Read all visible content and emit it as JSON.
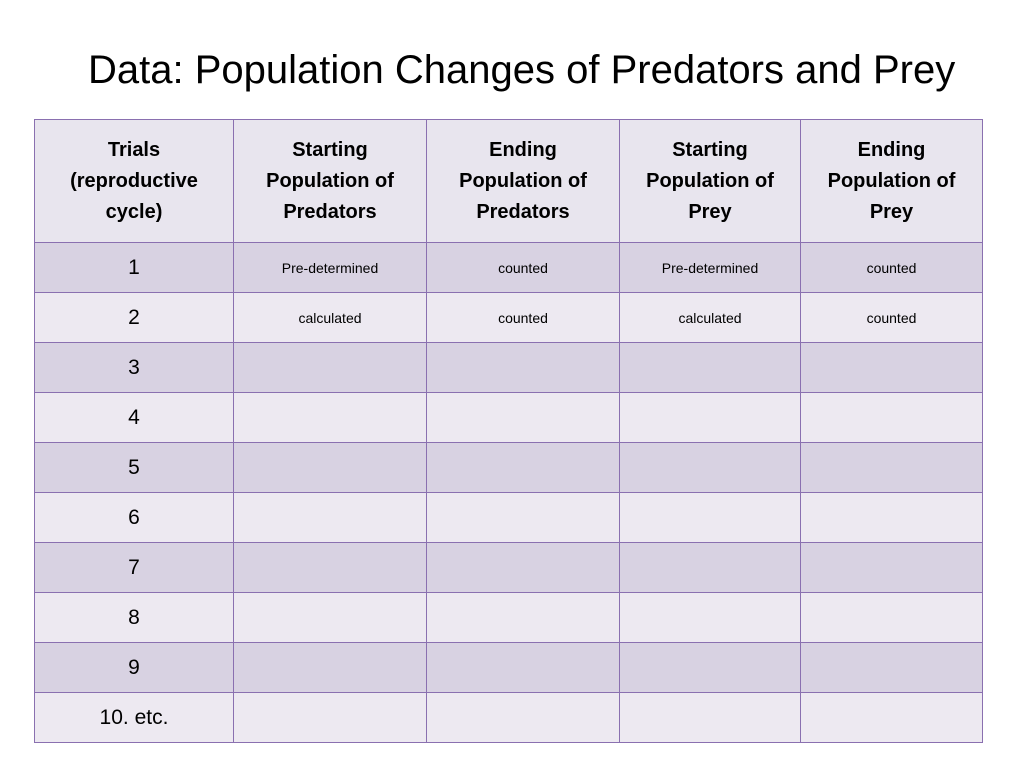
{
  "title": "Data: Population Changes of Predators and Prey",
  "table": {
    "headers": [
      [
        "Trials",
        "(reproductive",
        "cycle)"
      ],
      [
        "Starting",
        "Population of",
        "Predators"
      ],
      [
        "Ending",
        "Population of",
        "Predators"
      ],
      [
        "Starting",
        "Population of",
        "Prey"
      ],
      [
        "Ending",
        "Population of",
        "Prey"
      ]
    ],
    "rows": [
      {
        "trial": "1",
        "cells": [
          "Pre-determined",
          "counted",
          "Pre-determined",
          "counted"
        ]
      },
      {
        "trial": "2",
        "cells": [
          "calculated",
          "counted",
          "calculated",
          "counted"
        ]
      },
      {
        "trial": "3",
        "cells": [
          "",
          "",
          "",
          ""
        ]
      },
      {
        "trial": "4",
        "cells": [
          "",
          "",
          "",
          ""
        ]
      },
      {
        "trial": "5",
        "cells": [
          "",
          "",
          "",
          ""
        ]
      },
      {
        "trial": "6",
        "cells": [
          "",
          "",
          "",
          ""
        ]
      },
      {
        "trial": "7",
        "cells": [
          "",
          "",
          "",
          ""
        ]
      },
      {
        "trial": "8",
        "cells": [
          "",
          "",
          "",
          ""
        ]
      },
      {
        "trial": "9",
        "cells": [
          "",
          "",
          "",
          ""
        ]
      },
      {
        "trial": "10. etc.",
        "cells": [
          "",
          "",
          "",
          ""
        ]
      }
    ]
  },
  "colors": {
    "border": "#8a70b0",
    "header_bg": "#e8e5ee",
    "row_odd_bg": "#d8d2e2",
    "row_even_bg": "#ede9f1"
  }
}
